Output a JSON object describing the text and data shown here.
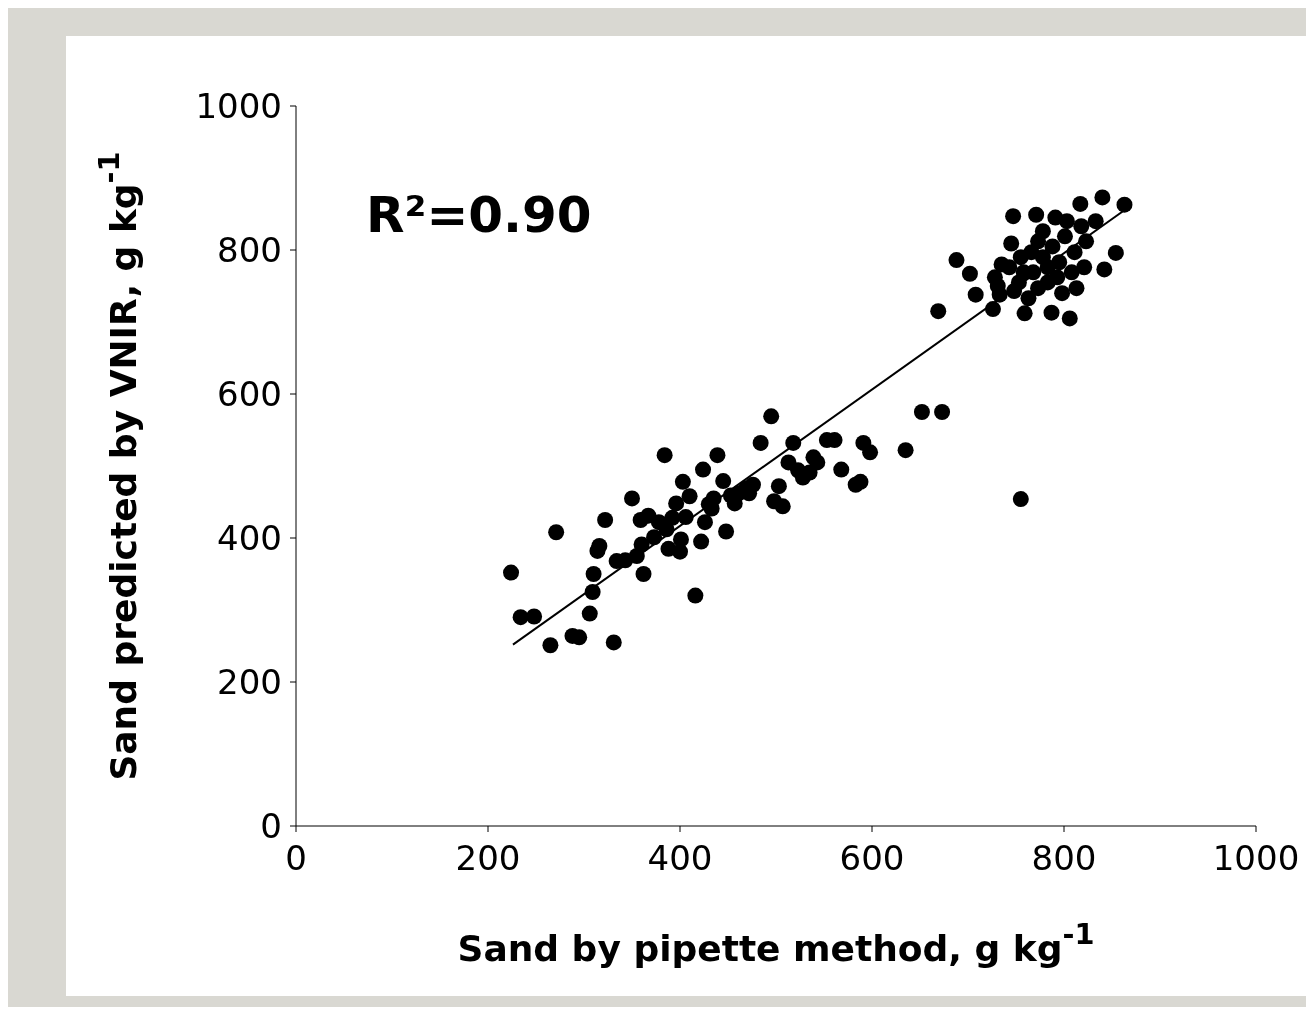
{
  "chart_data": {
    "type": "scatter",
    "xlabel": "Sand by pipette method, g kg$^{-1}$",
    "ylabel": "Sand predicted by VNIR, g kg$^{-1}$",
    "annotations": [
      "R²=0.90"
    ],
    "xlim": [
      0,
      1000
    ],
    "xticks": [
      0,
      200,
      400,
      600,
      800,
      1000
    ],
    "ylim": [
      0,
      1000
    ],
    "yticks": [
      0,
      200,
      400,
      600,
      800,
      1000
    ],
    "marker": "circle",
    "series": [
      {
        "type": "scatter",
        "color": "#000000",
        "x": [
          224,
          234,
          248,
          265,
          271,
          288,
          295,
          306,
          309,
          310,
          314,
          316,
          322,
          331,
          334,
          343,
          350,
          355,
          359,
          360,
          362,
          367,
          373,
          378,
          384,
          386,
          388,
          392,
          396,
          400,
          401,
          403,
          406,
          410,
          416,
          422,
          424,
          426,
          430,
          433,
          435,
          439,
          445,
          448,
          453,
          457,
          461,
          469,
          472,
          476,
          484,
          495,
          498,
          503,
          507,
          513,
          518,
          523,
          528,
          535,
          539,
          543,
          553,
          561,
          568,
          583,
          588,
          591,
          598,
          635,
          652,
          673,
          669,
          688,
          702,
          708,
          726,
          731,
          755,
          863,
          840,
          817,
          791,
          771,
          747,
          854,
          842,
          806,
          787,
          759,
          748,
          728,
          735,
          745,
          755,
          766,
          778,
          788,
          795,
          808,
          818,
          823,
          833,
          783,
          773,
          763,
          798,
          813,
          778,
          801,
          743,
          733,
          753,
          768,
          793,
          811,
          821,
          773,
          803,
          783,
          758
        ],
        "values": [
          352,
          290,
          291,
          251,
          408,
          264,
          262,
          295,
          325,
          350,
          382,
          389,
          425,
          255,
          368,
          369,
          455,
          375,
          425,
          391,
          350,
          431,
          401,
          422,
          515,
          412,
          385,
          428,
          448,
          381,
          398,
          478,
          429,
          458,
          320,
          395,
          495,
          422,
          447,
          441,
          455,
          515,
          479,
          409,
          459,
          448,
          462,
          469,
          462,
          474,
          532,
          569,
          451,
          472,
          444,
          505,
          532,
          494,
          484,
          491,
          512,
          505,
          536,
          536,
          495,
          474,
          478,
          532,
          519,
          522,
          575,
          575,
          715,
          786,
          767,
          738,
          718,
          750,
          454,
          863,
          873,
          864,
          845,
          849,
          847,
          796,
          773,
          705,
          713,
          712,
          743,
          762,
          780,
          809,
          790,
          797,
          790,
          805,
          783,
          769,
          833,
          812,
          840,
          755,
          747,
          733,
          740,
          747,
          826,
          819,
          776,
          738,
          755,
          769,
          762,
          797,
          776,
          812,
          840,
          776,
          769
        ]
      },
      {
        "type": "line",
        "color": "#000000",
        "marker": "none",
        "x": [
          226,
          868
        ],
        "values": [
          252,
          860
        ]
      }
    ]
  }
}
